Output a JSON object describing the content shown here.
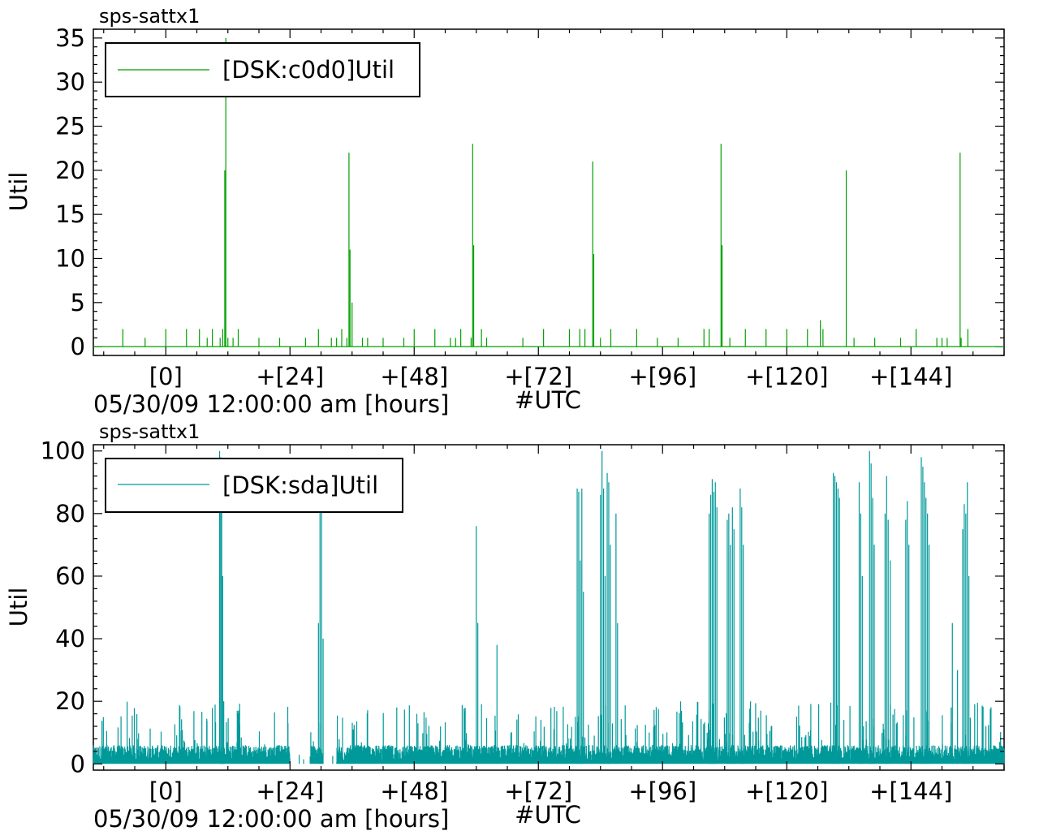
{
  "chart_data": [
    {
      "type": "line",
      "title": "sps-sattx1",
      "ylabel": "Util",
      "xlabel": "#UTC",
      "x_origin_label": "05/30/09 12:00:00 am [hours]",
      "xlim": [
        -14,
        162
      ],
      "ylim": [
        -1,
        36
      ],
      "y_ticks": [
        0,
        5,
        10,
        15,
        20,
        25,
        30,
        35
      ],
      "x_ticks": [
        {
          "value": 0,
          "label": "[0]"
        },
        {
          "value": 24,
          "label": "+[24]"
        },
        {
          "value": 48,
          "label": "+[48]"
        },
        {
          "value": 72,
          "label": "+[72]"
        },
        {
          "value": 96,
          "label": "+[96]"
        },
        {
          "value": 120,
          "label": "+[120]"
        },
        {
          "value": 144,
          "label": "+[144]"
        }
      ],
      "legend_position": "top-left",
      "series": [
        {
          "name": "[DSK:c0d0]Util",
          "color": "#00a000",
          "baseline": 0,
          "spikes": [
            [
              -8.3,
              2
            ],
            [
              -4,
              1
            ],
            [
              0,
              2
            ],
            [
              4,
              2
            ],
            [
              6.5,
              2
            ],
            [
              8,
              1
            ],
            [
              9,
              2
            ],
            [
              10.5,
              1
            ],
            [
              11,
              2
            ],
            [
              11.4,
              20
            ],
            [
              11.6,
              35
            ],
            [
              12,
              1
            ],
            [
              13,
              1
            ],
            [
              14,
              2
            ],
            [
              18,
              1
            ],
            [
              22,
              1
            ],
            [
              27,
              1
            ],
            [
              29.5,
              2
            ],
            [
              32,
              1
            ],
            [
              33,
              1
            ],
            [
              34,
              2
            ],
            [
              35,
              1
            ],
            [
              35.4,
              22
            ],
            [
              35.6,
              11
            ],
            [
              36,
              5
            ],
            [
              38,
              1
            ],
            [
              39,
              1
            ],
            [
              42,
              1
            ],
            [
              46,
              1
            ],
            [
              48,
              2
            ],
            [
              52,
              2
            ],
            [
              55,
              1
            ],
            [
              56,
              1
            ],
            [
              57,
              2
            ],
            [
              59,
              1
            ],
            [
              59.3,
              23
            ],
            [
              59.5,
              11.5
            ],
            [
              61,
              2
            ],
            [
              62,
              1
            ],
            [
              69,
              1
            ],
            [
              73,
              2
            ],
            [
              78,
              2
            ],
            [
              80,
              2
            ],
            [
              81,
              2
            ],
            [
              82.5,
              21
            ],
            [
              82.7,
              10.5
            ],
            [
              84,
              1
            ],
            [
              86,
              2
            ],
            [
              91,
              2
            ],
            [
              95,
              1
            ],
            [
              99,
              1
            ],
            [
              104,
              2
            ],
            [
              105,
              2
            ],
            [
              107.3,
              23
            ],
            [
              107.5,
              11.5
            ],
            [
              109,
              1
            ],
            [
              112,
              2
            ],
            [
              116,
              2
            ],
            [
              120,
              2
            ],
            [
              124,
              2
            ],
            [
              126.5,
              3
            ],
            [
              127,
              2
            ],
            [
              131.5,
              20
            ],
            [
              133,
              1
            ],
            [
              137,
              1
            ],
            [
              142,
              1
            ],
            [
              145,
              2
            ],
            [
              149,
              1
            ],
            [
              150,
              1
            ],
            [
              151,
              1
            ],
            [
              153.5,
              22
            ],
            [
              153.7,
              1
            ],
            [
              155,
              2
            ]
          ]
        }
      ]
    },
    {
      "type": "line",
      "title": "sps-sattx1",
      "ylabel": "Util",
      "xlabel": "#UTC",
      "x_origin_label": "05/30/09 12:00:00 am [hours]",
      "xlim": [
        -14,
        162
      ],
      "ylim": [
        -2,
        102
      ],
      "y_ticks": [
        0,
        20,
        40,
        60,
        80,
        100
      ],
      "x_ticks": [
        {
          "value": 0,
          "label": "[0]"
        },
        {
          "value": 24,
          "label": "+[24]"
        },
        {
          "value": 48,
          "label": "+[48]"
        },
        {
          "value": 72,
          "label": "+[72]"
        },
        {
          "value": 96,
          "label": "+[96]"
        },
        {
          "value": 120,
          "label": "+[120]"
        },
        {
          "value": 144,
          "label": "+[144]"
        }
      ],
      "legend_position": "top-left",
      "series": [
        {
          "name": "[DSK:sda]Util",
          "color": "#00999a",
          "noise_level": 6,
          "noise_peaks": 14,
          "quiet_ranges": [
            [
              24,
              28
            ],
            [
              30,
              33
            ]
          ],
          "bursts": [
            [
              10.4,
              100
            ],
            [
              10.6,
              98
            ],
            [
              10.8,
              95
            ],
            [
              11,
              60
            ],
            [
              11.2,
              20
            ],
            [
              29.5,
              45
            ],
            [
              29.8,
              85
            ],
            [
              30.1,
              90
            ],
            [
              30.4,
              40
            ],
            [
              60,
              76
            ],
            [
              60.3,
              45
            ],
            [
              64,
              38
            ],
            [
              79.5,
              88
            ],
            [
              79.8,
              87
            ],
            [
              80.1,
              65
            ],
            [
              80.4,
              88
            ],
            [
              80.7,
              55
            ],
            [
              84,
              86
            ],
            [
              84.3,
              100
            ],
            [
              84.6,
              88
            ],
            [
              84.9,
              60
            ],
            [
              85.3,
              93
            ],
            [
              85.6,
              90
            ],
            [
              85.9,
              70
            ],
            [
              87,
              80
            ],
            [
              87.3,
              45
            ],
            [
              105,
              80
            ],
            [
              105.3,
              86
            ],
            [
              105.6,
              91
            ],
            [
              105.9,
              87
            ],
            [
              106.2,
              90
            ],
            [
              106.5,
              82
            ],
            [
              108.5,
              78
            ],
            [
              108.8,
              80
            ],
            [
              109.1,
              70
            ],
            [
              109.5,
              82
            ],
            [
              109.8,
              75
            ],
            [
              111,
              88
            ],
            [
              111.3,
              82
            ],
            [
              111.6,
              70
            ],
            [
              129,
              93
            ],
            [
              129.3,
              92
            ],
            [
              129.6,
              90
            ],
            [
              129.9,
              88
            ],
            [
              130.2,
              85
            ],
            [
              134,
              90
            ],
            [
              134.3,
              80
            ],
            [
              134.6,
              60
            ],
            [
              136,
              100
            ],
            [
              136.3,
              96
            ],
            [
              136.6,
              85
            ],
            [
              136.9,
              70
            ],
            [
              139,
              80
            ],
            [
              139.3,
              92
            ],
            [
              139.6,
              78
            ],
            [
              140,
              65
            ],
            [
              143,
              78
            ],
            [
              143.3,
              84
            ],
            [
              143.6,
              70
            ],
            [
              146,
              98
            ],
            [
              146.3,
              95
            ],
            [
              146.6,
              90
            ],
            [
              146.9,
              85
            ],
            [
              147.2,
              80
            ],
            [
              147.5,
              70
            ],
            [
              152,
              45
            ],
            [
              153,
              30
            ],
            [
              154,
              75
            ],
            [
              154.3,
              83
            ],
            [
              154.6,
              80
            ],
            [
              154.9,
              90
            ],
            [
              155.2,
              60
            ]
          ]
        }
      ]
    }
  ]
}
